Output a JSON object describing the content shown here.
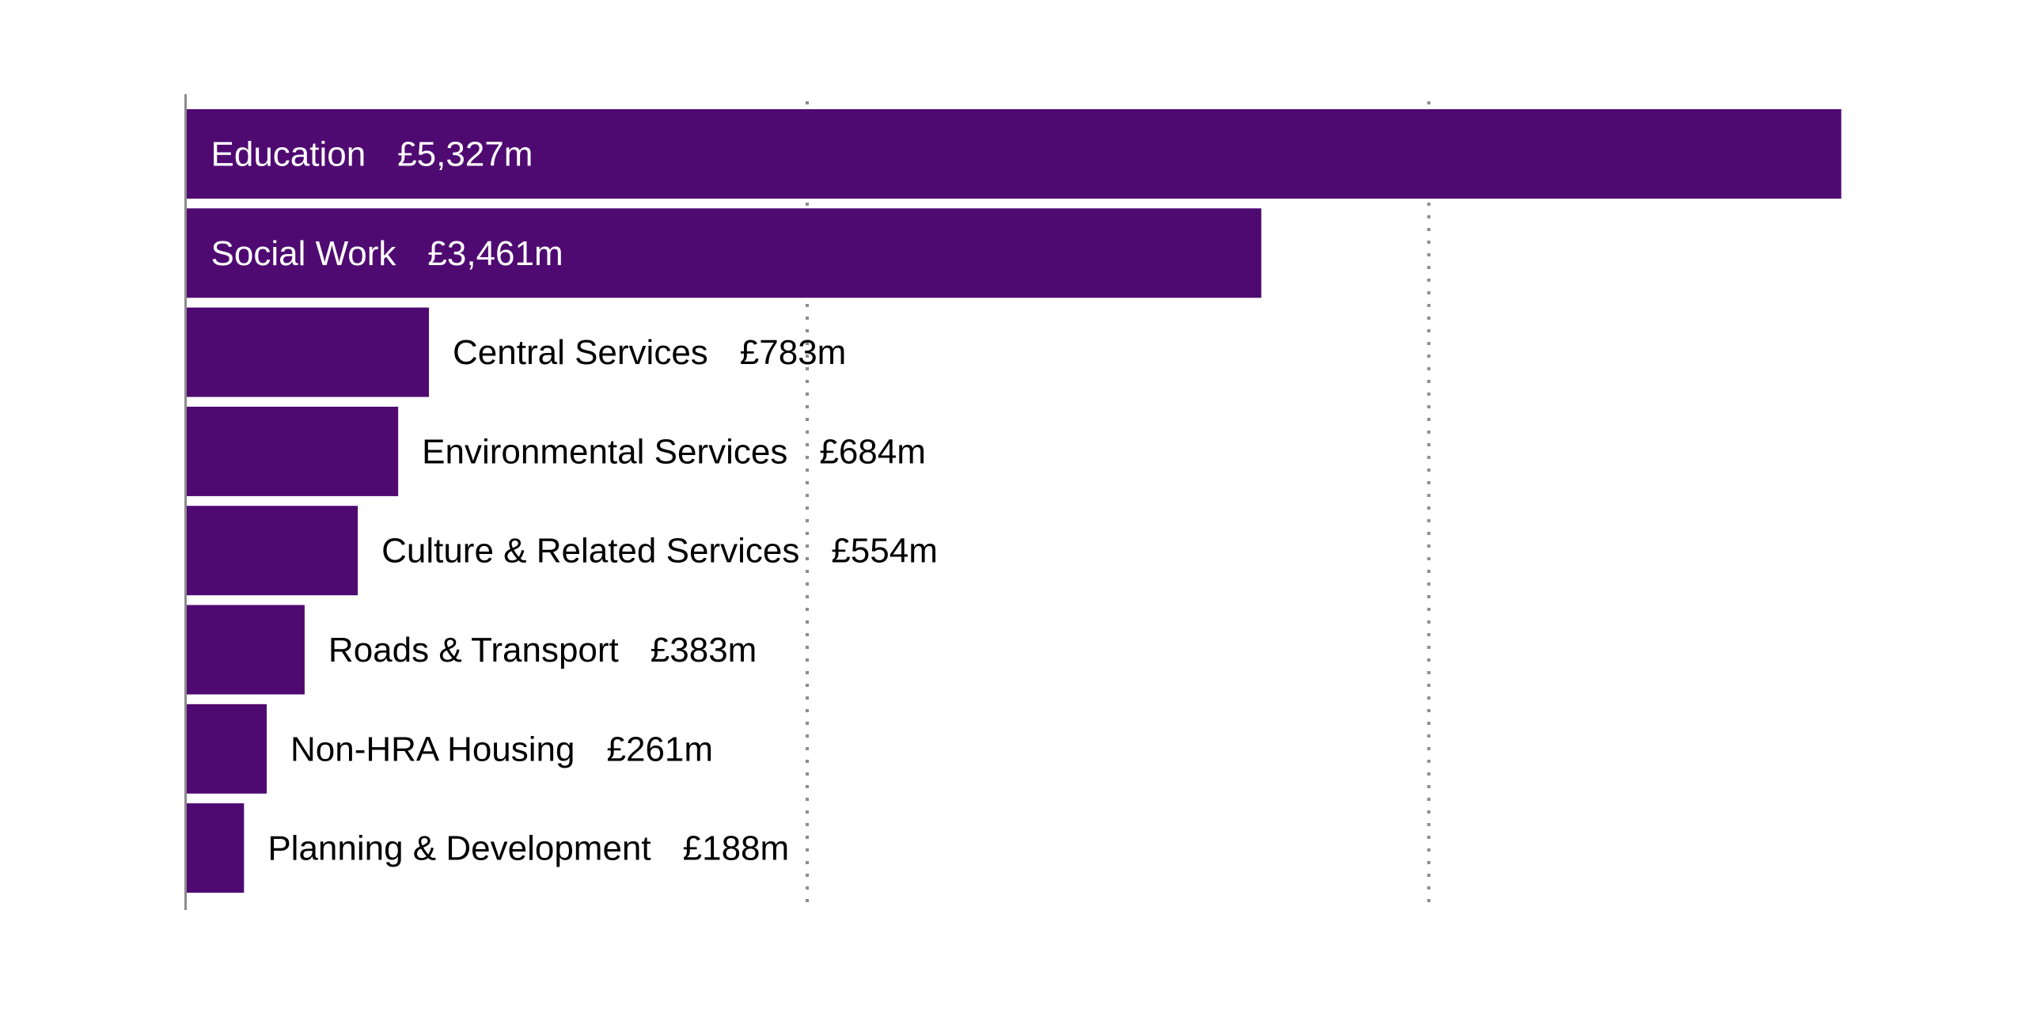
{
  "chart_data": {
    "type": "bar",
    "orientation": "horizontal",
    "categories": [
      "Education",
      "Social Work",
      "Central Services",
      "Environmental Services",
      "Culture & Related Services",
      "Roads & Transport",
      "Non-HRA Housing",
      "Planning & Development"
    ],
    "values": [
      5327,
      3461,
      783,
      684,
      554,
      383,
      261,
      188
    ],
    "value_labels": [
      "£5,327m",
      "£3,461m",
      "£783m",
      "£684m",
      "£554m",
      "£383m",
      "£261m",
      "£188m"
    ],
    "title": "",
    "xlabel": "",
    "ylabel": "",
    "xlim": [
      0,
      5327
    ],
    "gridlines_x": [
      2000,
      4000
    ],
    "grid": "vertical dotted",
    "legend": "none",
    "colors": {
      "bar": "#4f0a71",
      "label_inside": "#ffffff",
      "label_outside": "#000000",
      "grid": "#8c8c8c",
      "axis": "#8c8c8c"
    }
  }
}
